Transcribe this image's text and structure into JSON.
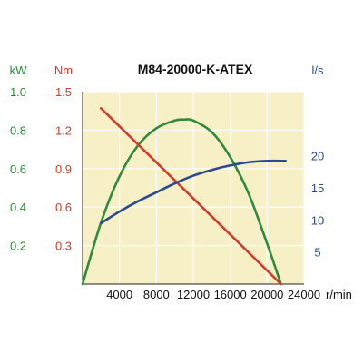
{
  "chart_data": {
    "type": "line",
    "title": "M84-20000-K-ATEX",
    "x": {
      "unit": "r/min",
      "range": [
        0,
        24000
      ],
      "ticks": [
        4000,
        8000,
        12000,
        16000,
        20000,
        24000
      ]
    },
    "axes": {
      "power": {
        "unit": "kW",
        "side": "left-outer",
        "range": [
          0,
          1.0
        ],
        "ticks": [
          "0.2",
          "0.4",
          "0.6",
          "0.8",
          "1.0"
        ],
        "color": "#2e8b3c"
      },
      "torque": {
        "unit": "Nm",
        "side": "left-inner",
        "range": [
          0,
          1.5
        ],
        "ticks": [
          "0.3",
          "0.6",
          "0.9",
          "1.2",
          "1.5"
        ],
        "color": "#d13b2a"
      },
      "flow": {
        "unit": "l/s",
        "side": "right",
        "range": [
          0,
          30
        ],
        "ticks": [
          "5",
          "10",
          "15",
          "20"
        ],
        "color": "#2b4a8f"
      }
    },
    "grid": true,
    "background": "#f7efc6",
    "series": [
      {
        "axis": "power",
        "color": "#2e8b3c",
        "x": [
          0,
          2000,
          4000,
          6000,
          8000,
          10000,
          11000,
          12000,
          14000,
          16000,
          18000,
          20000,
          21500
        ],
        "values": [
          0,
          0.32,
          0.56,
          0.72,
          0.81,
          0.85,
          0.855,
          0.85,
          0.79,
          0.66,
          0.47,
          0.21,
          0
        ]
      },
      {
        "axis": "torque",
        "color": "#d13b2a",
        "x": [
          2000,
          21500
        ],
        "values": [
          1.37,
          0
        ]
      },
      {
        "axis": "flow",
        "color": "#2b4a8f",
        "x": [
          2000,
          4000,
          6000,
          8000,
          10000,
          12000,
          14000,
          16000,
          18000,
          20000,
          22000
        ],
        "values": [
          9.5,
          11.3,
          12.9,
          14.3,
          15.7,
          16.9,
          17.8,
          18.5,
          19.0,
          19.2,
          19.2
        ]
      }
    ]
  }
}
